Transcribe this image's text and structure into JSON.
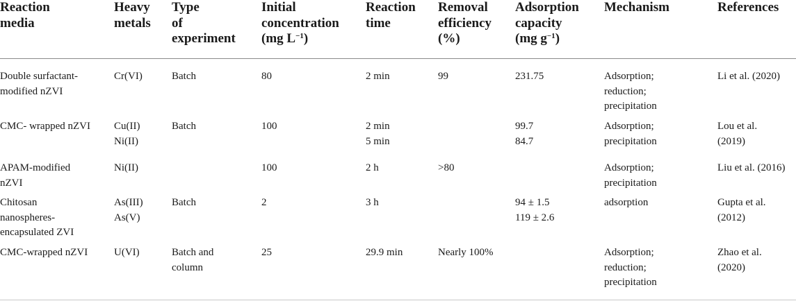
{
  "table": {
    "headers": {
      "reaction_media": "Reaction\nmedia",
      "heavy_metals": "Heavy\nmetals",
      "type_of_experiment": "Type\nof\nexperiment",
      "initial_concentration": "Initial\nconcentration\n(mg L",
      "initial_concentration_sup": "−1",
      "initial_concentration_close": ")",
      "reaction_time": "Reaction\ntime",
      "removal_efficiency": "Removal\nefficiency\n(%)",
      "adsorption_capacity": "Adsorption\ncapacity\n(mg g",
      "adsorption_capacity_sup": "−1",
      "adsorption_capacity_close": ")",
      "mechanism": "Mechanism",
      "references": "References"
    },
    "rows": [
      {
        "media": "Double surfactant-\nmodified nZVI",
        "metals": "Cr(VI)",
        "experiment": "Batch",
        "concentration": "80",
        "time": "2 min",
        "efficiency": "99",
        "capacity": "231.75",
        "mechanism": "Adsorption;\nreduction;\nprecipitation",
        "reference": "Li et al. (2020)"
      },
      {
        "media": "CMC- wrapped nZVI",
        "metals": "Cu(II)\nNi(II)",
        "experiment": "Batch",
        "concentration": "100",
        "time": "2 min\n5 min",
        "efficiency": "",
        "capacity": "99.7\n84.7",
        "mechanism": "Adsorption;\nprecipitation",
        "reference": "Lou et al.\n(2019)"
      },
      {
        "media": "APAM-modified\nnZVI",
        "metals": "Ni(II)",
        "experiment": "",
        "concentration": "100",
        "time": "2 h",
        "efficiency": ">80",
        "capacity": "",
        "mechanism": "Adsorption;\nprecipitation",
        "reference": "Liu et al. (2016)"
      },
      {
        "media": "Chitosan\nnanospheres-\nencapsulated ZVI",
        "metals": "As(III)\nAs(V)",
        "experiment": "Batch",
        "concentration": "2",
        "time": "3 h",
        "efficiency": "",
        "capacity": "94 ± 1.5\n119 ± 2.6",
        "mechanism": "adsorption",
        "reference": "Gupta et al.\n(2012)"
      },
      {
        "media": "CMC-wrapped nZVI",
        "metals": "U(VI)",
        "experiment": "Batch and\ncolumn",
        "concentration": "25",
        "time": "29.9 min",
        "efficiency": "Nearly 100%",
        "capacity": "",
        "mechanism": "Adsorption;\nreduction;\nprecipitation",
        "reference": "Zhao et al.\n(2020)"
      }
    ]
  }
}
